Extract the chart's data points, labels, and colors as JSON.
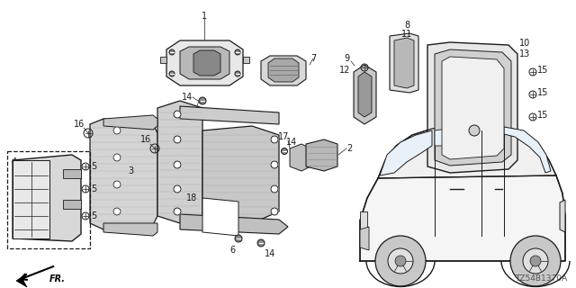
{
  "bg_color": "#ffffff",
  "lc": "#1a1a1a",
  "diagram_ref": "TZ54B1370A",
  "fig_w": 6.4,
  "fig_h": 3.2,
  "dpi": 100
}
